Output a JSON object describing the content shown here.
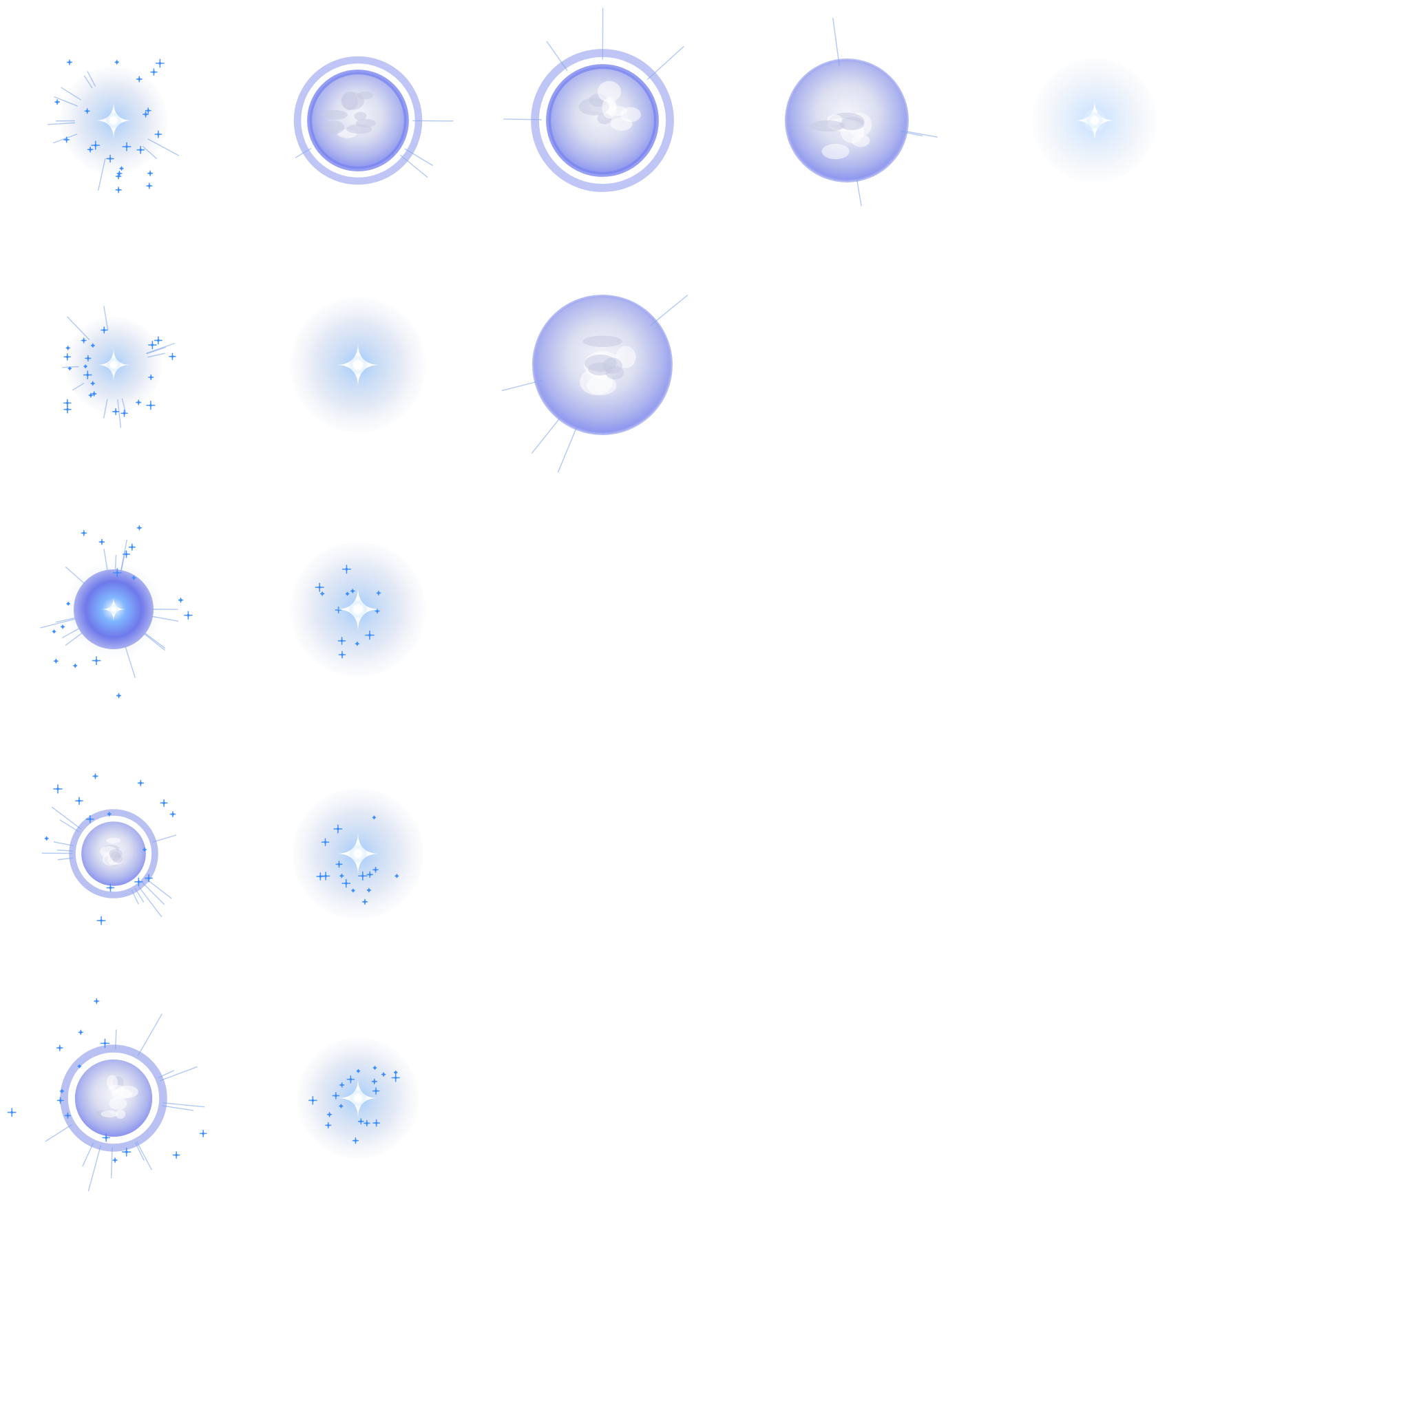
{
  "spritesheet": {
    "rows": 5,
    "columns": 5,
    "frames": [
      {
        "row": 0,
        "col": 0,
        "kind": "spark-burst"
      },
      {
        "row": 0,
        "col": 1,
        "kind": "ringed-orb"
      },
      {
        "row": 0,
        "col": 2,
        "kind": "ringed-orb"
      },
      {
        "row": 0,
        "col": 3,
        "kind": "orb"
      },
      {
        "row": 0,
        "col": 4,
        "kind": "pale-glow"
      },
      {
        "row": 1,
        "col": 0,
        "kind": "spark-burst"
      },
      {
        "row": 1,
        "col": 1,
        "kind": "glow"
      },
      {
        "row": 1,
        "col": 2,
        "kind": "orb"
      },
      {
        "row": 2,
        "col": 0,
        "kind": "spark-orb"
      },
      {
        "row": 2,
        "col": 1,
        "kind": "glow"
      },
      {
        "row": 3,
        "col": 0,
        "kind": "ringed-spark-orb"
      },
      {
        "row": 3,
        "col": 1,
        "kind": "glow"
      },
      {
        "row": 4,
        "col": 0,
        "kind": "ringed-spark-orb"
      },
      {
        "row": 4,
        "col": 1,
        "kind": "glow"
      }
    ],
    "colors": {
      "core": "#ffffff",
      "spark": "#3a8cff",
      "orb": "#7b86f0",
      "haze": "#c9d4ec"
    }
  }
}
